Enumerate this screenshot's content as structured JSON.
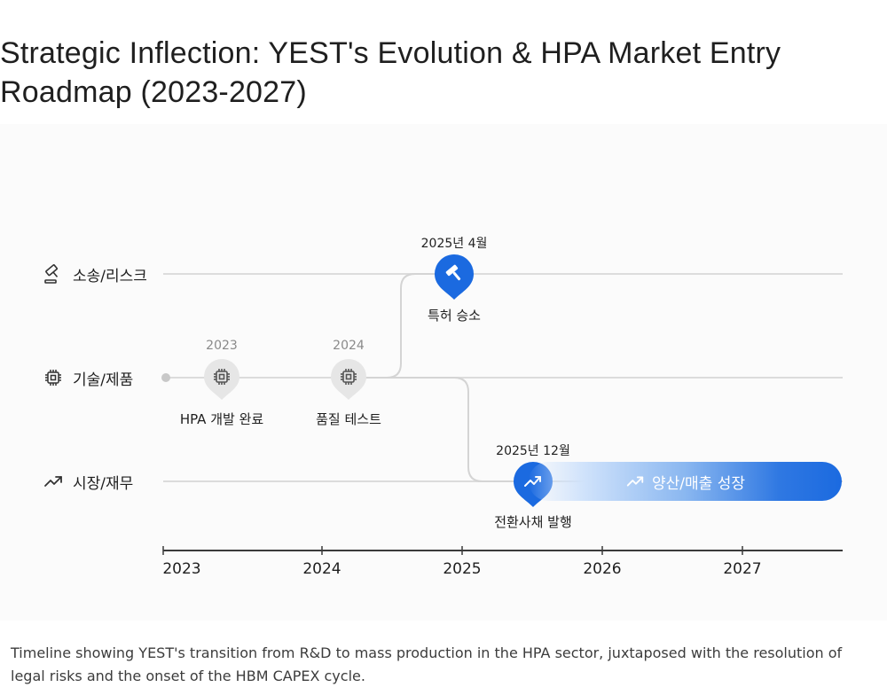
{
  "title": {
    "line1": "Strategic Inflection: YEST's Evolution & HPA Market Entry",
    "line2": "Roadmap (2023-2027)"
  },
  "lanes": [
    {
      "label": "소송/리스크",
      "icon": "gavel-icon"
    },
    {
      "label": "기술/제품",
      "icon": "chip-icon"
    },
    {
      "label": "시장/재무",
      "icon": "trending-up-icon"
    }
  ],
  "events": [
    {
      "date": "2023",
      "label": "HPA 개발 완료",
      "lane": "기술/제품",
      "icon": "chip-icon"
    },
    {
      "date": "2024",
      "label": "품질 테스트",
      "lane": "기술/제품",
      "icon": "chip-icon"
    },
    {
      "date": "2025년 4월",
      "label": "특허 승소",
      "lane": "소송/리스크",
      "icon": "gavel-icon"
    },
    {
      "date": "2025년 12월",
      "label": "전환사채 발행",
      "lane": "시장/재무",
      "icon": "trending-up-icon"
    }
  ],
  "growth_bar": {
    "label": "양산/매출 성장",
    "icon": "trending-up-icon",
    "from": "2026",
    "to": "2027"
  },
  "axis": {
    "years": [
      "2023",
      "2024",
      "2025",
      "2026",
      "2027"
    ]
  },
  "caption": "Timeline showing YEST's transition from R&D to mass production in the HPA sector, juxtaposed with the resolution of legal risks and the onset of the HBM CAPEX cycle.",
  "colors": {
    "accent": "#1b6ae0",
    "line": "#dcdcdc",
    "node": "#e6e6e6"
  }
}
